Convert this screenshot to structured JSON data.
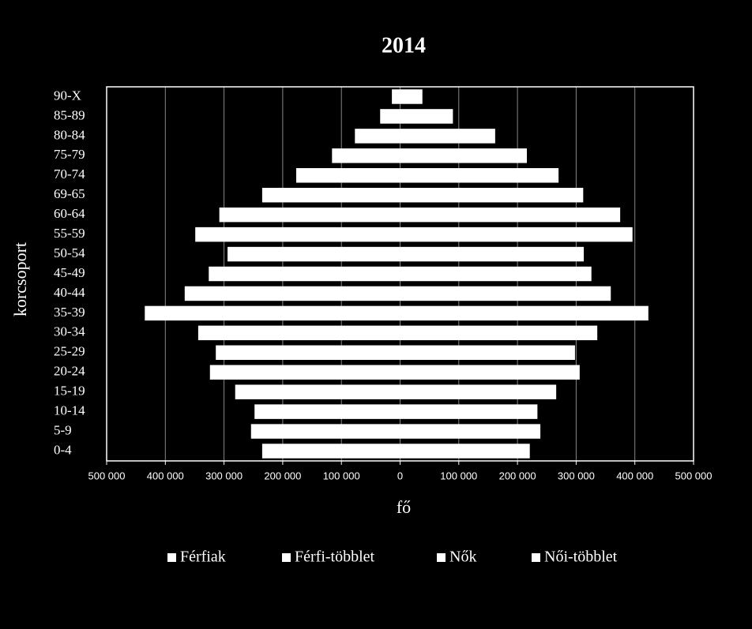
{
  "chart_data": {
    "type": "bar",
    "orientation": "horizontal",
    "title": "2014",
    "x_label": "fő",
    "y_label": "korcsoport",
    "categories": [
      "0-4",
      "5-9",
      "10-14",
      "15-19",
      "20-24",
      "25-29",
      "30-34",
      "35-39",
      "40-44",
      "45-49",
      "50-54",
      "55-59",
      "60-64",
      "69-65",
      "70-74",
      "75-79",
      "80-84",
      "85-89",
      "90-X"
    ],
    "series": [
      {
        "name": "Férfiak",
        "color": "#ffffff",
        "values": [
          -235000,
          -254000,
          -248000,
          -281000,
          -324000,
          -314000,
          -344000,
          -435000,
          -367000,
          -326000,
          -294000,
          -349000,
          -308000,
          -235000,
          -177000,
          -116000,
          -77000,
          -34000,
          -14000
        ]
      },
      {
        "name": "Férfi-többlet",
        "color": "#ffffff",
        "values": [
          null,
          null,
          null,
          null,
          null,
          null,
          null,
          null,
          null,
          null,
          null,
          null,
          null,
          null,
          null,
          null,
          null,
          null,
          null
        ]
      },
      {
        "name": "Nők",
        "color": "#ffffff",
        "values": [
          221000,
          239000,
          234000,
          266000,
          306000,
          298000,
          336000,
          423000,
          359000,
          326000,
          313000,
          396000,
          375000,
          312000,
          270000,
          216000,
          162000,
          90000,
          38000
        ]
      },
      {
        "name": "Női-többlet",
        "color": "#ffffff",
        "values": [
          null,
          null,
          null,
          null,
          null,
          null,
          null,
          null,
          null,
          null,
          null,
          null,
          null,
          null,
          null,
          null,
          null,
          null,
          null
        ]
      }
    ],
    "xlim": [
      -500000,
      500000
    ],
    "xticks": [
      {
        "value": -500000,
        "label": "500 000"
      },
      {
        "value": -400000,
        "label": "400 000"
      },
      {
        "value": -300000,
        "label": "300 000"
      },
      {
        "value": -200000,
        "label": "200 000"
      },
      {
        "value": -100000,
        "label": "100 000"
      },
      0,
      {
        "value": 100000,
        "label": "100 000"
      },
      {
        "value": 200000,
        "label": "200 000"
      },
      {
        "value": 300000,
        "label": "300 000"
      },
      {
        "value": 400000,
        "label": "400 000"
      },
      {
        "value": 500000,
        "label": "500 000"
      }
    ],
    "grid": true,
    "legend": "bottom"
  }
}
